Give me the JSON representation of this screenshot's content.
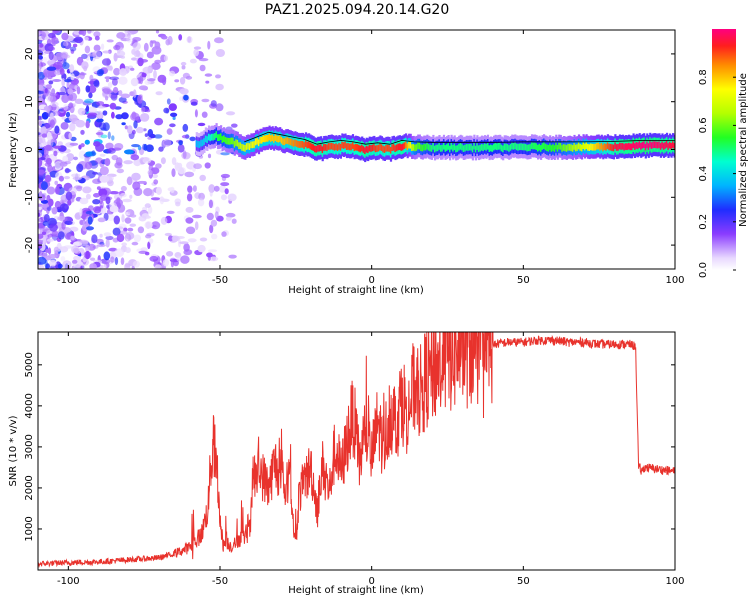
{
  "page": {
    "title": "PAZ1.2025.094.20.14.G20"
  },
  "chart_data": [
    {
      "type": "heatmap",
      "title": "PAZ1.2025.094.20.14.G20",
      "xlabel": "Height of straight line (km)",
      "ylabel": "Frequency (Hz)",
      "xlim": [
        -110,
        100
      ],
      "ylim": [
        -25,
        25
      ],
      "xticks": [
        -100,
        -50,
        0,
        50,
        100
      ],
      "yticks": [
        -20,
        -10,
        0,
        10,
        20
      ],
      "colorbar": {
        "label": "Normalized spectral amplitude",
        "range": [
          0,
          1
        ],
        "ticks": [
          0.0,
          0.2,
          0.4,
          0.6,
          0.8
        ],
        "colormap": "rainbow"
      },
      "ridge": {
        "x": [
          -58,
          -55,
          -52,
          -50,
          -46,
          -42,
          -38,
          -34,
          -30,
          -26,
          -22,
          -18,
          -14,
          -10,
          -6,
          -2,
          2,
          6,
          10,
          14,
          20,
          30,
          40,
          50,
          60,
          70,
          80,
          90,
          100
        ],
        "y": [
          1,
          2,
          3,
          2.5,
          1.5,
          0.5,
          1.5,
          2.5,
          2,
          1.5,
          1,
          0,
          0.5,
          0.8,
          0.5,
          0,
          0.3,
          0,
          0.8,
          0.5,
          0.4,
          0.4,
          0.4,
          0.5,
          0.5,
          0.5,
          0.6,
          0.8,
          0.8
        ],
        "amplitude": [
          0.35,
          0.4,
          0.5,
          0.55,
          0.6,
          0.7,
          0.75,
          0.8,
          0.8,
          0.85,
          0.9,
          0.95,
          0.9,
          0.9,
          0.9,
          0.95,
          0.9,
          0.9,
          0.95,
          0.6,
          0.5,
          0.5,
          0.5,
          0.5,
          0.55,
          0.7,
          0.95,
          1.0,
          0.95
        ]
      },
      "scatter_region": {
        "x": [
          -110,
          -45
        ],
        "y": [
          -25,
          25
        ]
      }
    },
    {
      "type": "line",
      "xlabel": "Height of straight line (km)",
      "ylabel": "SNR (10 * v/v)",
      "xlim": [
        -110,
        100
      ],
      "ylim": [
        0,
        5800
      ],
      "xticks": [
        -100,
        -50,
        0,
        50,
        100
      ],
      "yticks": [
        1000,
        2000,
        3000,
        4000,
        5000
      ],
      "grid": false,
      "color": "#e8322c",
      "x": [
        -110,
        -100,
        -90,
        -80,
        -70,
        -65,
        -60,
        -58,
        -56,
        -54,
        -53,
        -52,
        -51,
        -50,
        -49,
        -48,
        -46,
        -44,
        -42,
        -40,
        -39,
        -38,
        -37,
        -36,
        -34,
        -32,
        -30,
        -28,
        -27,
        -26,
        -25,
        -24,
        -22,
        -20,
        -18,
        -16,
        -14,
        -12,
        -10,
        -8,
        -6,
        -4,
        -2,
        0,
        2,
        4,
        6,
        8,
        10,
        12,
        14,
        16,
        18,
        20,
        25,
        30,
        35,
        40,
        45,
        50,
        55,
        60,
        65,
        70,
        75,
        80,
        85,
        87,
        88,
        89,
        90,
        95,
        100
      ],
      "y": [
        150,
        180,
        200,
        250,
        300,
        400,
        550,
        700,
        900,
        1500,
        2600,
        3100,
        2200,
        1300,
        600,
        700,
        550,
        750,
        800,
        1000,
        2400,
        2200,
        2500,
        2300,
        2000,
        2600,
        2300,
        1800,
        2900,
        1200,
        600,
        1800,
        2200,
        2500,
        1500,
        2600,
        1900,
        3000,
        2400,
        3200,
        3800,
        2600,
        3500,
        2700,
        3600,
        3000,
        3900,
        3600,
        4200,
        3800,
        4500,
        4300,
        4700,
        4900,
        5200,
        5350,
        5450,
        5500,
        5550,
        5550,
        5600,
        5600,
        5550,
        5550,
        5500,
        5500,
        5500,
        5450,
        2500,
        2400,
        2500,
        2450,
        2400
      ]
    }
  ]
}
